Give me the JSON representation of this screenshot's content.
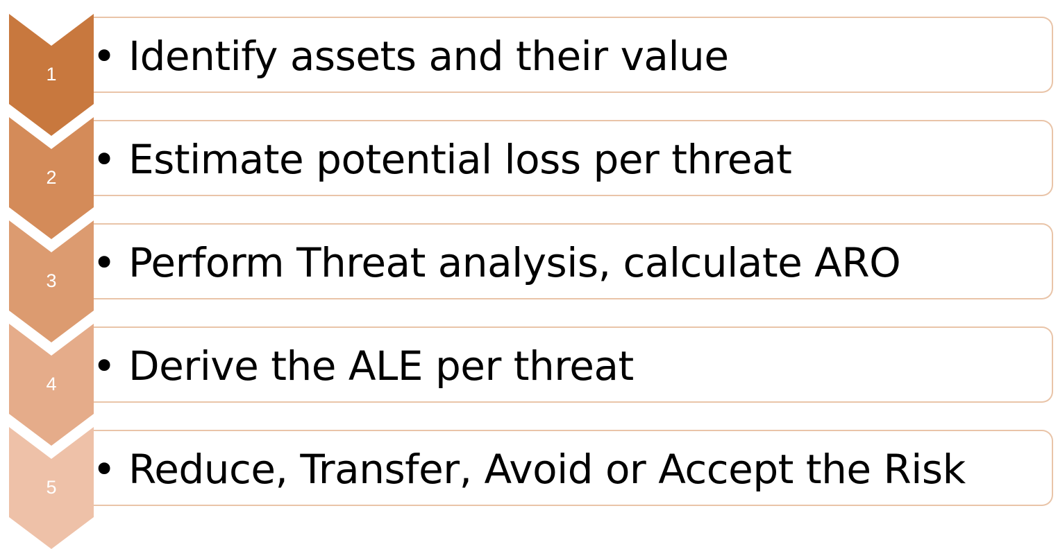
{
  "steps": [
    {
      "number": "1",
      "text": "Identify assets and their value",
      "color": "#c8783e"
    },
    {
      "number": "2",
      "text": "Estimate potential loss per threat",
      "color": "#d48b59"
    },
    {
      "number": "3",
      "text": "Perform Threat analysis, calculate ARO",
      "color": "#dc9b70"
    },
    {
      "number": "4",
      "text": "Derive the ALE per threat",
      "color": "#e5ac8a"
    },
    {
      "number": "5",
      "text": "Reduce, Transfer, Avoid or Accept the Risk",
      "color": "#eec1a8"
    }
  ],
  "colors": {
    "box_border": "#e9c4a8",
    "text": "#000000",
    "number": "#ffffff"
  }
}
